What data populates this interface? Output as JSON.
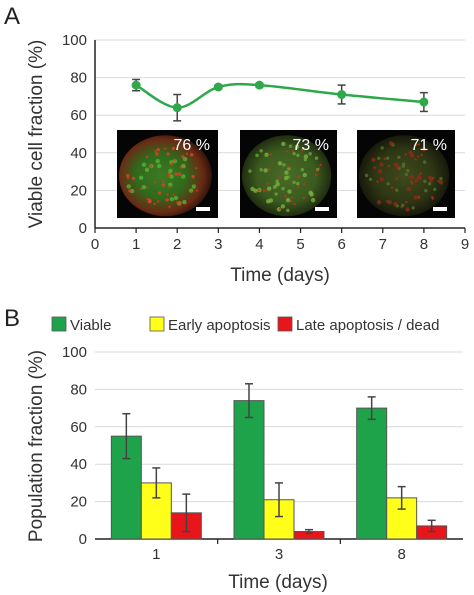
{
  "panels": {
    "a": "A",
    "b": "B"
  },
  "chart_data": [
    {
      "type": "line",
      "xlabel": "Time (days)",
      "ylabel": "Viable cell fraction (%)",
      "xlim": [
        0,
        9
      ],
      "ylim": [
        0,
        100
      ],
      "xticks": [
        "0",
        "1",
        "2",
        "3",
        "4",
        "5",
        "6",
        "7",
        "8",
        "9"
      ],
      "yticks": [
        "0",
        "20",
        "40",
        "60",
        "80",
        "100"
      ],
      "series": [
        {
          "x": [
            1,
            2,
            3,
            4,
            6,
            8
          ],
          "y": [
            76,
            64,
            75,
            76,
            71,
            67
          ],
          "err": [
            3,
            7,
            1,
            1,
            5,
            5
          ],
          "color": "#2EA84A"
        }
      ],
      "insets": [
        {
          "label": "76 %",
          "tone": "red-rich"
        },
        {
          "label": "73 %",
          "tone": "mixed"
        },
        {
          "label": "71 %",
          "tone": "dark"
        }
      ]
    },
    {
      "type": "bar",
      "xlabel": "Time (days)",
      "ylabel": "Population fraction (%)",
      "ylim": [
        0,
        100
      ],
      "yticks": [
        "0",
        "20",
        "40",
        "60",
        "80",
        "100"
      ],
      "categories": [
        "1",
        "3",
        "8"
      ],
      "legend_position": "top",
      "series": [
        {
          "name": "Viable",
          "color": "#1FA34A",
          "values": [
            55,
            74,
            70
          ],
          "err": [
            12,
            9,
            6
          ]
        },
        {
          "name": "Early apoptosis",
          "color": "#FFFF1A",
          "values": [
            30,
            21,
            22
          ],
          "err": [
            8,
            9,
            6
          ]
        },
        {
          "name": "Late apoptosis / dead",
          "color": "#E8151B",
          "values": [
            14,
            4,
            7
          ],
          "err": [
            10,
            1,
            3
          ]
        }
      ]
    }
  ]
}
